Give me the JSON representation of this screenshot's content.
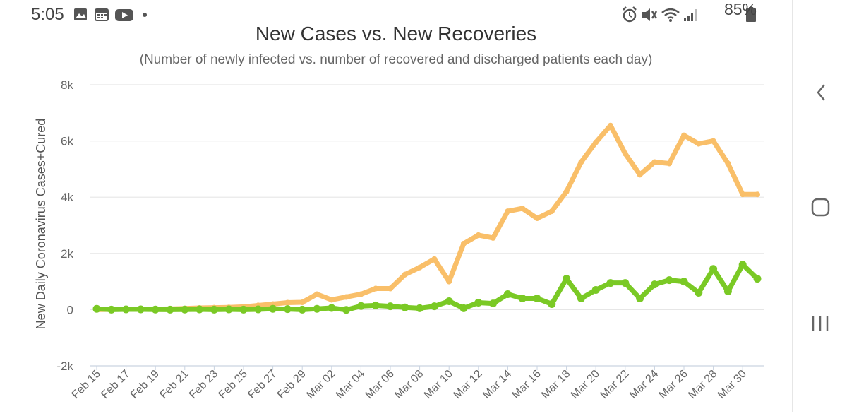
{
  "status": {
    "time": "5:05",
    "left_icons": [
      "gallery-icon",
      "calendar-icon",
      "youtube-icon",
      "dot-icon"
    ],
    "right_icons": [
      "alarm-icon",
      "mute-icon",
      "wifi-icon",
      "signal-icon",
      "battery-icon"
    ],
    "battery": "85%"
  },
  "nav": {
    "icons": [
      "back-icon",
      "home-icon",
      "recents-icon"
    ]
  },
  "chart_data": {
    "type": "line",
    "title": "New Cases vs. New Recoveries",
    "subtitle": "(Number of newly infected vs. number of recovered and discharged patients each day)",
    "ylabel": "New Daily Coronavirus Cases+Cured",
    "xlabel": "",
    "ylim": [
      -2000,
      8000
    ],
    "ytick_labels": [
      "-2k",
      "0",
      "2k",
      "4k",
      "6k",
      "8k"
    ],
    "ytick_values": [
      -2000,
      0,
      2000,
      4000,
      6000,
      8000
    ],
    "grid": true,
    "x": [
      "Feb 15",
      "Feb 16",
      "Feb 17",
      "Feb 18",
      "Feb 19",
      "Feb 20",
      "Feb 21",
      "Feb 22",
      "Feb 23",
      "Feb 24",
      "Feb 25",
      "Feb 26",
      "Feb 27",
      "Feb 28",
      "Feb 29",
      "Mar 01",
      "Mar 02",
      "Mar 03",
      "Mar 04",
      "Mar 05",
      "Mar 06",
      "Mar 07",
      "Mar 08",
      "Mar 09",
      "Mar 10",
      "Mar 11",
      "Mar 12",
      "Mar 13",
      "Mar 14",
      "Mar 15",
      "Mar 16",
      "Mar 17",
      "Mar 18",
      "Mar 19",
      "Mar 20",
      "Mar 21",
      "Mar 22",
      "Mar 23",
      "Mar 24",
      "Mar 25",
      "Mar 26",
      "Mar 27",
      "Mar 28",
      "Mar 29",
      "Mar 30",
      "Mar 31"
    ],
    "xtick_labels": [
      "Feb 15",
      "Feb 17",
      "Feb 19",
      "Feb 21",
      "Feb 23",
      "Feb 25",
      "Feb 27",
      "Feb 29",
      "Mar 02",
      "Mar 04",
      "Mar 06",
      "Mar 08",
      "Mar 10",
      "Mar 12",
      "Mar 14",
      "Mar 16",
      "Mar 18",
      "Mar 20",
      "Mar 22",
      "Mar 24",
      "Mar 26",
      "Mar 28",
      "Mar 30"
    ],
    "series": [
      {
        "color": "#f9bf69",
        "values": [
          0,
          10,
          15,
          20,
          20,
          25,
          40,
          60,
          70,
          80,
          100,
          150,
          200,
          250,
          260,
          550,
          350,
          450,
          550,
          750,
          750,
          1250,
          1500,
          1800,
          1000,
          2350,
          2650,
          2550,
          3500,
          3600,
          3250,
          3500,
          4200,
          5250,
          5950,
          6550,
          5550,
          4800,
          5250,
          5200,
          6200,
          5900,
          6000,
          5200,
          4100,
          4100
        ]
      },
      {
        "color": "#7ac925",
        "values": [
          30,
          0,
          10,
          10,
          5,
          0,
          5,
          10,
          0,
          10,
          0,
          10,
          30,
          20,
          0,
          30,
          60,
          -10,
          130,
          150,
          120,
          80,
          50,
          120,
          300,
          50,
          250,
          220,
          550,
          400,
          400,
          200,
          1100,
          400,
          700,
          950,
          950,
          400,
          900,
          1050,
          1000,
          600,
          1450,
          650,
          1600,
          1100
        ]
      }
    ]
  }
}
